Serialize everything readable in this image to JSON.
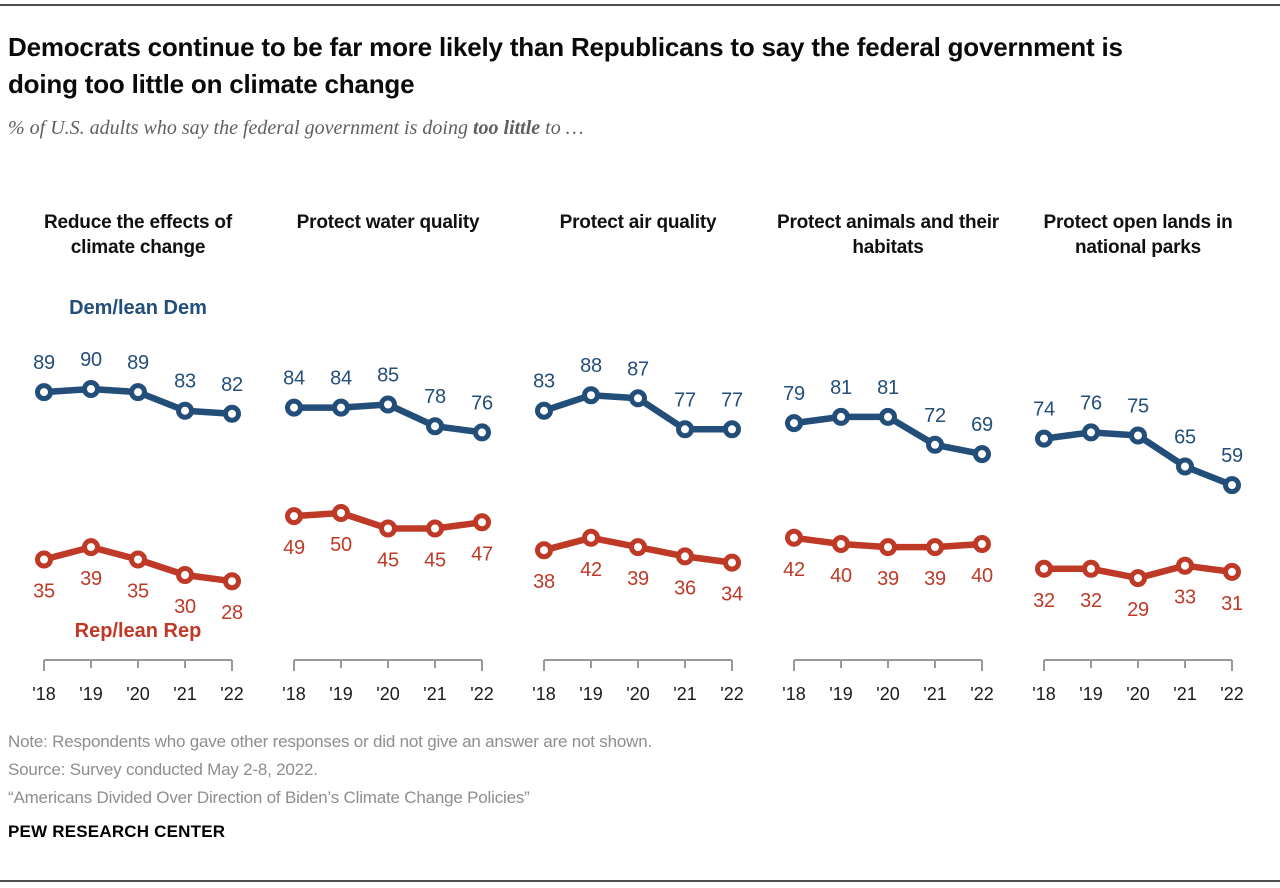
{
  "header": {
    "title": "Democrats continue to be far more likely than Republicans to say the federal government is doing too little on climate change",
    "subtitle_prefix": "% of U.S. adults who say the federal government is doing ",
    "subtitle_bold": "too little",
    "subtitle_suffix": " to …"
  },
  "legend": {
    "dem": "Dem/lean Dem",
    "rep": "Rep/lean Rep"
  },
  "colors": {
    "dem": "#234e79",
    "rep": "#bf3927",
    "axis": "#999999",
    "year_label": "#1a1a1a"
  },
  "chart_data": {
    "type": "line",
    "categories": [
      "'18",
      "'19",
      "'20",
      "'21",
      "'22"
    ],
    "x_years": [
      2018,
      2019,
      2020,
      2021,
      2022
    ],
    "ylim": [
      0,
      100
    ],
    "grid": false,
    "legend_position": "inline-first-panel",
    "marker": "open-circle",
    "panels": [
      {
        "title": "Reduce the effects of climate change",
        "series": [
          {
            "name": "Dem/lean Dem",
            "party": "dem",
            "values": [
              89,
              90,
              89,
              83,
              82
            ]
          },
          {
            "name": "Rep/lean Rep",
            "party": "rep",
            "values": [
              35,
              39,
              35,
              30,
              28
            ]
          }
        ]
      },
      {
        "title": "Protect water quality",
        "series": [
          {
            "name": "Dem/lean Dem",
            "party": "dem",
            "values": [
              84,
              84,
              85,
              78,
              76
            ]
          },
          {
            "name": "Rep/lean Rep",
            "party": "rep",
            "values": [
              49,
              50,
              45,
              45,
              47
            ]
          }
        ]
      },
      {
        "title": "Protect air quality",
        "series": [
          {
            "name": "Dem/lean Dem",
            "party": "dem",
            "values": [
              83,
              88,
              87,
              77,
              77
            ]
          },
          {
            "name": "Rep/lean Rep",
            "party": "rep",
            "values": [
              38,
              42,
              39,
              36,
              34
            ]
          }
        ]
      },
      {
        "title": "Protect animals and their habitats",
        "series": [
          {
            "name": "Dem/lean Dem",
            "party": "dem",
            "values": [
              79,
              81,
              81,
              72,
              69
            ]
          },
          {
            "name": "Rep/lean Rep",
            "party": "rep",
            "values": [
              42,
              40,
              39,
              39,
              40
            ]
          }
        ]
      },
      {
        "title": "Protect open lands in national parks",
        "series": [
          {
            "name": "Dem/lean Dem",
            "party": "dem",
            "values": [
              74,
              76,
              75,
              65,
              59
            ]
          },
          {
            "name": "Rep/lean Rep",
            "party": "rep",
            "values": [
              32,
              32,
              29,
              33,
              31
            ]
          }
        ]
      }
    ]
  },
  "footer": {
    "note": "Note: Respondents who gave other responses or did not give an answer are not shown.",
    "source": "Source: Survey conducted May 2-8, 2022.",
    "quote": "“Americans Divided Over Direction of Biden’s Climate Change Policies”",
    "brand": "PEW RESEARCH CENTER"
  }
}
